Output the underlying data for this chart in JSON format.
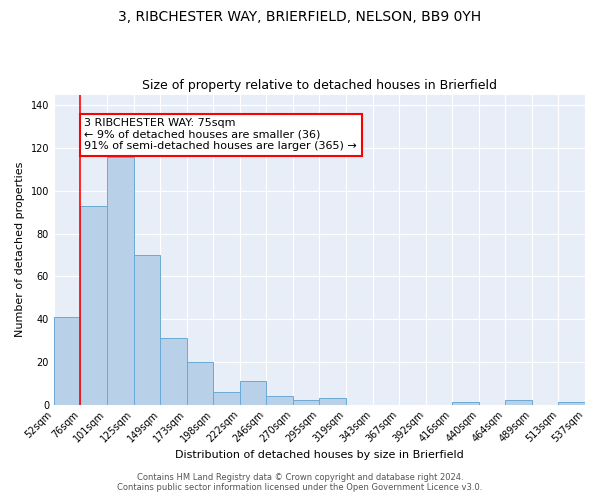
{
  "title": "3, RIBCHESTER WAY, BRIERFIELD, NELSON, BB9 0YH",
  "subtitle": "Size of property relative to detached houses in Brierfield",
  "xlabel": "Distribution of detached houses by size in Brierfield",
  "ylabel": "Number of detached properties",
  "bar_values": [
    41,
    93,
    116,
    70,
    31,
    20,
    6,
    11,
    4,
    2,
    3,
    0,
    0,
    0,
    0,
    1,
    0,
    2,
    0,
    1
  ],
  "bar_labels": [
    "52sqm",
    "76sqm",
    "101sqm",
    "125sqm",
    "149sqm",
    "173sqm",
    "198sqm",
    "222sqm",
    "246sqm",
    "270sqm",
    "295sqm",
    "319sqm",
    "343sqm",
    "367sqm",
    "392sqm",
    "416sqm",
    "440sqm",
    "464sqm",
    "489sqm",
    "513sqm",
    "537sqm"
  ],
  "bar_color": "#b8d0e8",
  "bar_edge_color": "#6aaad4",
  "annotation_text": "3 RIBCHESTER WAY: 75sqm\n← 9% of detached houses are smaller (36)\n91% of semi-detached houses are larger (365) →",
  "annotation_box_color": "white",
  "annotation_box_edge_color": "red",
  "ylim": [
    0,
    145
  ],
  "yticks": [
    0,
    20,
    40,
    60,
    80,
    100,
    120,
    140
  ],
  "background_color": "#e8eef8",
  "footer_line1": "Contains HM Land Registry data © Crown copyright and database right 2024.",
  "footer_line2": "Contains public sector information licensed under the Open Government Licence v3.0.",
  "title_fontsize": 10,
  "subtitle_fontsize": 9,
  "xlabel_fontsize": 8,
  "ylabel_fontsize": 8,
  "tick_fontsize": 7,
  "annotation_fontsize": 8,
  "footer_fontsize": 6
}
